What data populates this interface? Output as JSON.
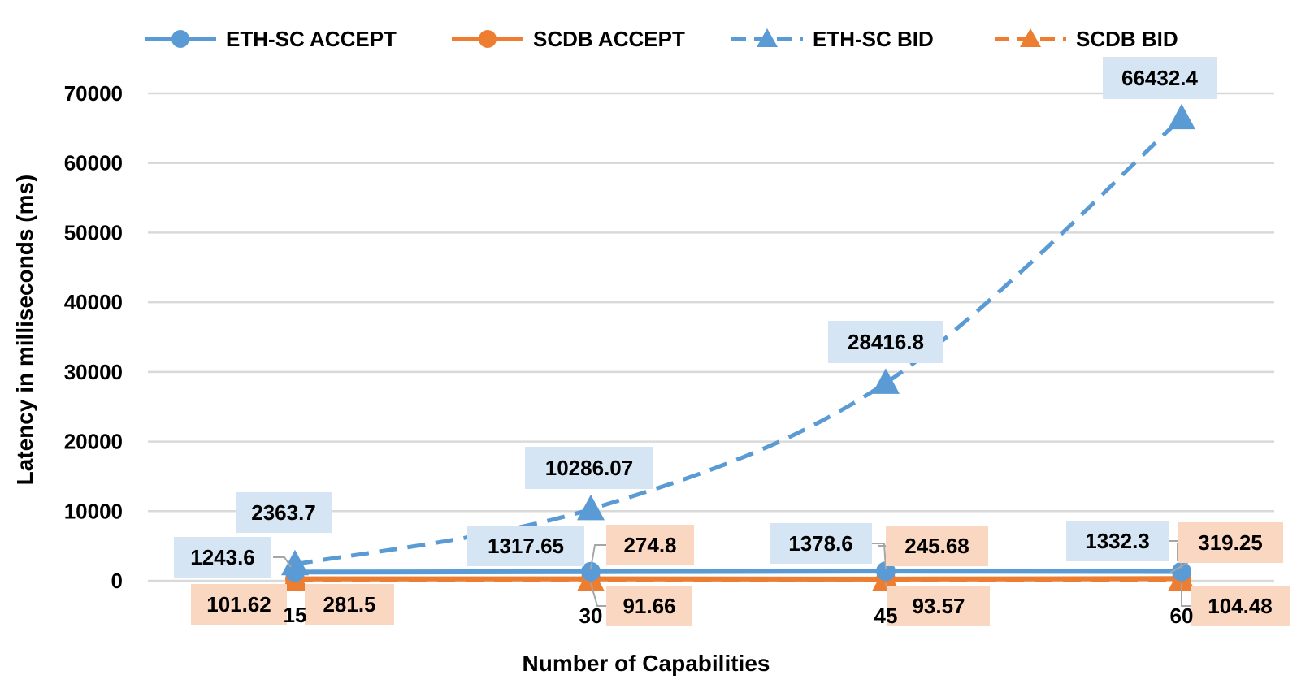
{
  "chart_data": {
    "type": "line",
    "title": "",
    "xlabel": "Number of Capabilities",
    "ylabel": "Latency  in milliseconds (ms)",
    "categories": [
      "15",
      "30",
      "45",
      "60"
    ],
    "ylim": [
      0,
      70000
    ],
    "yticks": [
      "0",
      "10000",
      "20000",
      "30000",
      "40000",
      "50000",
      "60000",
      "70000"
    ],
    "grid": "horizontal",
    "legend_position": "top",
    "series": [
      {
        "name": "ETH-SC ACCEPT",
        "values": [
          1243.6,
          1317.65,
          1378.6,
          1332.3
        ],
        "labels": [
          "1243.6",
          "1317.65",
          "1378.6",
          "1332.3"
        ],
        "color": "#5B9BD5",
        "line_style": "solid",
        "marker": "circle",
        "label_bg": "#D5E5F3"
      },
      {
        "name": "SCDB ACCEPT",
        "values": [
          281.5,
          274.8,
          245.68,
          319.25
        ],
        "labels": [
          "281.5",
          "274.8",
          "245.68",
          "319.25"
        ],
        "color": "#ED7D31",
        "line_style": "solid",
        "marker": "circle",
        "label_bg": "#FAD7C1"
      },
      {
        "name": "ETH-SC BID",
        "values": [
          2363.7,
          10286.07,
          28416.8,
          66432.4
        ],
        "labels": [
          "2363.7",
          "10286.07",
          "28416.8",
          "66432.4"
        ],
        "color": "#5B9BD5",
        "line_style": "dashed",
        "marker": "triangle",
        "label_bg": "#D5E5F3"
      },
      {
        "name": "SCDB BID",
        "values": [
          101.62,
          91.66,
          93.57,
          104.48
        ],
        "labels": [
          "101.62",
          "91.66",
          "93.57",
          "104.48"
        ],
        "color": "#ED7D31",
        "line_style": "dashed",
        "marker": "triangle",
        "label_bg": "#FAD7C1"
      }
    ]
  }
}
